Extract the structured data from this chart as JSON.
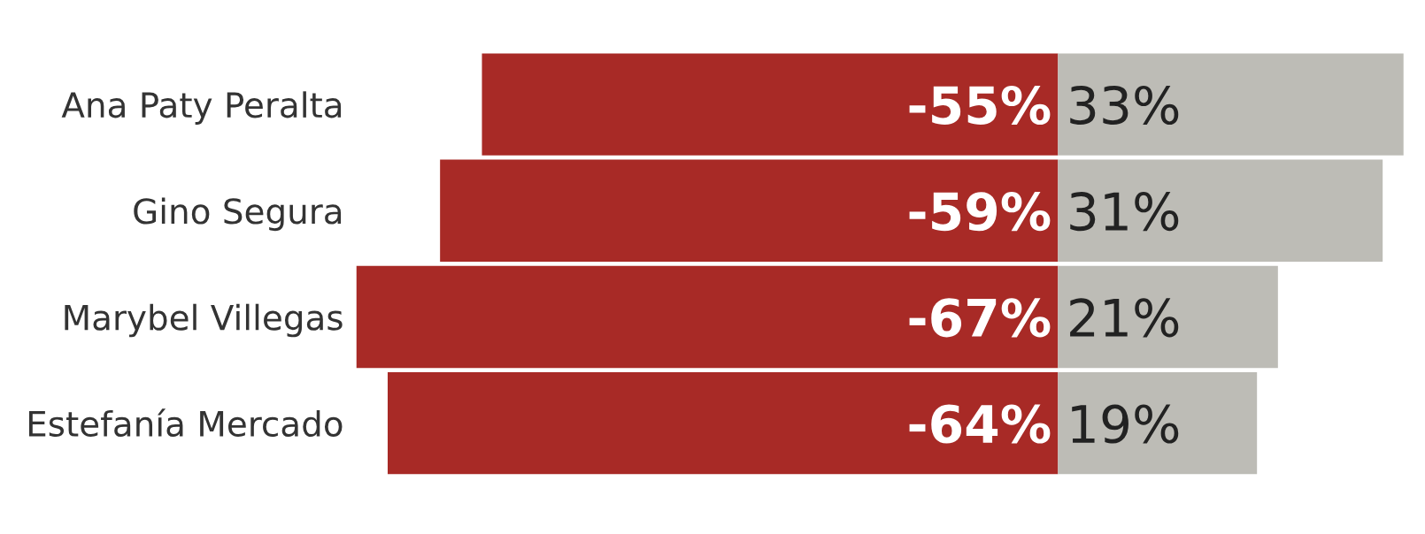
{
  "chart_data": {
    "type": "bar",
    "orientation": "horizontal",
    "stacked": true,
    "categories": [
      "Ana Paty Peralta",
      "Gino Segura",
      "Marybel Villegas",
      "Estefanía Mercado"
    ],
    "series": [
      {
        "color": "#a82a26",
        "values": [
          -55,
          -59,
          -67,
          -64
        ],
        "value_labels": [
          "-55%",
          "-59%",
          "-67%",
          "-64%"
        ]
      },
      {
        "color": "#bdbcb6",
        "values": [
          33,
          31,
          21,
          19
        ],
        "value_labels": [
          "33%",
          "31%",
          "21%",
          "19%"
        ]
      }
    ],
    "grid": false,
    "legend": false,
    "tick_labels": "y"
  }
}
